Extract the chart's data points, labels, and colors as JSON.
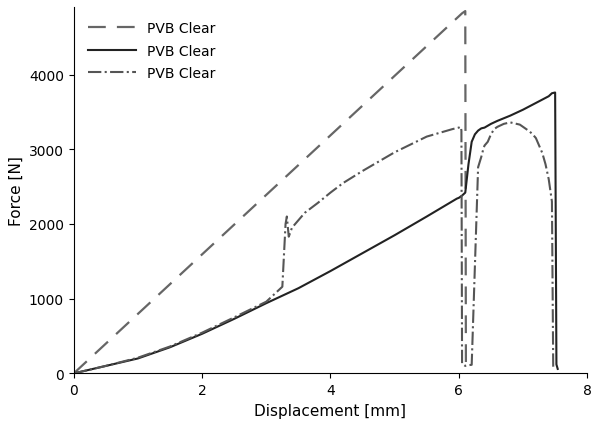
{
  "title": "",
  "xlabel": "Displacement [mm]",
  "ylabel": "Force [N]",
  "xlim": [
    0,
    8
  ],
  "ylim": [
    0,
    4900
  ],
  "yticks": [
    0,
    1000,
    2000,
    3000,
    4000
  ],
  "xticks": [
    0,
    2,
    4,
    6,
    8
  ],
  "background_color": "#ffffff",
  "legend_labels": [
    "PVB Clear",
    "PVB Clear",
    "PVB Clear"
  ],
  "curve_dashed": {
    "x": [
      0,
      6.05,
      6.1,
      6.11,
      6.12
    ],
    "y": [
      0,
      4820,
      4850,
      60,
      0
    ],
    "color": "#666666",
    "linestyle": "dashed",
    "linewidth": 1.6,
    "dashes": [
      8,
      5
    ]
  },
  "curve_solid": {
    "x": [
      0,
      0.05,
      0.5,
      1.0,
      1.5,
      2.0,
      2.5,
      3.0,
      3.5,
      4.0,
      4.5,
      5.0,
      5.5,
      5.95,
      5.97,
      6.0,
      6.05,
      6.1,
      6.15,
      6.2,
      6.25,
      6.3,
      6.35,
      6.4,
      6.5,
      6.6,
      6.8,
      7.0,
      7.2,
      7.4,
      7.45,
      7.5,
      7.52,
      7.54
    ],
    "y": [
      0,
      10,
      100,
      200,
      350,
      530,
      730,
      940,
      1140,
      1370,
      1610,
      1850,
      2100,
      2330,
      2340,
      2350,
      2380,
      2420,
      2800,
      3100,
      3200,
      3250,
      3280,
      3290,
      3340,
      3380,
      3450,
      3530,
      3620,
      3710,
      3750,
      3760,
      120,
      60
    ],
    "color": "#222222",
    "linestyle": "solid",
    "linewidth": 1.5
  },
  "curve_dashdot": {
    "x": [
      0,
      0.05,
      0.5,
      1.0,
      1.5,
      2.0,
      2.5,
      3.0,
      3.25,
      3.3,
      3.32,
      3.35,
      3.4,
      3.5,
      3.6,
      3.8,
      4.0,
      4.2,
      4.5,
      5.0,
      5.5,
      5.9,
      5.95,
      6.0,
      6.02,
      6.03,
      6.04,
      6.05,
      6.1,
      6.15,
      6.2,
      6.3,
      6.35,
      6.38,
      6.4,
      6.45,
      6.5,
      6.55,
      6.6,
      6.65,
      6.7,
      6.75,
      6.8,
      6.85,
      6.9,
      6.95,
      7.0,
      7.05,
      7.1,
      7.15,
      7.2,
      7.25,
      7.3,
      7.35,
      7.4,
      7.45,
      7.47,
      7.48
    ],
    "y": [
      0,
      10,
      100,
      210,
      360,
      545,
      750,
      960,
      1160,
      2000,
      2100,
      1830,
      1950,
      2050,
      2150,
      2280,
      2420,
      2550,
      2710,
      2960,
      3170,
      3270,
      3280,
      3290,
      3300,
      3300,
      3250,
      130,
      100,
      110,
      115,
      2760,
      2900,
      3000,
      3050,
      3100,
      3200,
      3270,
      3300,
      3320,
      3340,
      3350,
      3360,
      3350,
      3340,
      3330,
      3300,
      3270,
      3240,
      3200,
      3150,
      3050,
      2950,
      2800,
      2600,
      2300,
      100,
      50
    ],
    "color": "#555555",
    "linestyle": "dashdot",
    "linewidth": 1.5
  }
}
